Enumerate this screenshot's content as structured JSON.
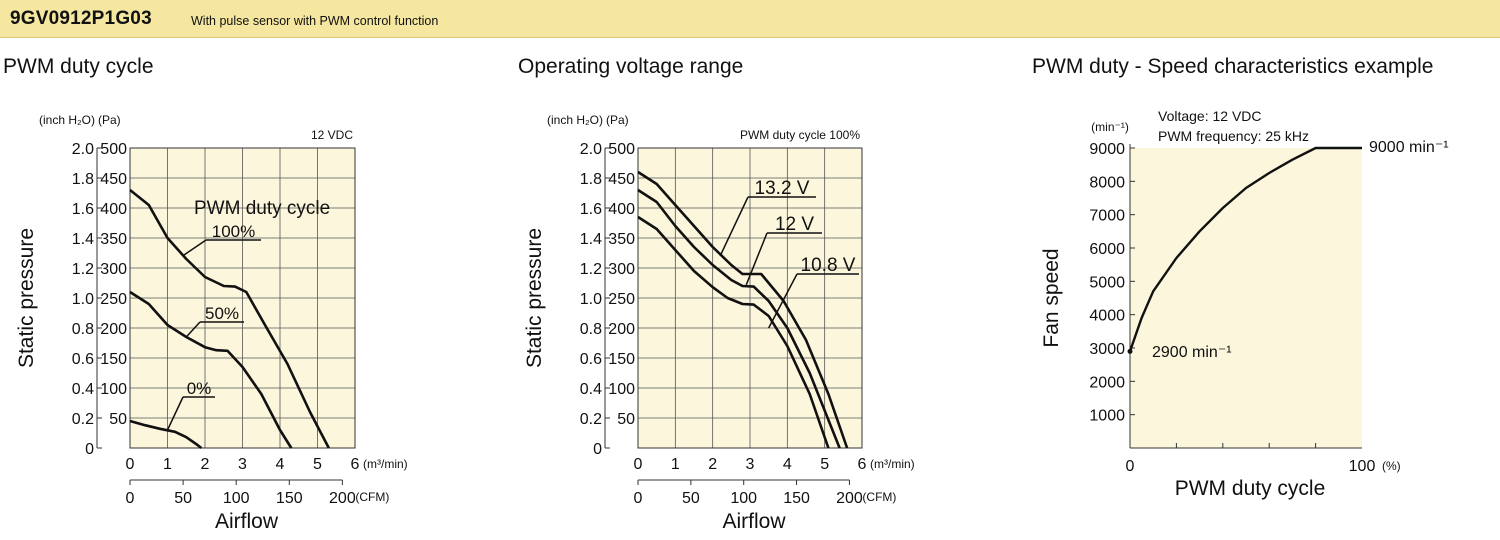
{
  "header": {
    "model": "9GV0912P1G03",
    "description": "With pulse sensor with PWM control function"
  },
  "colors": {
    "banner": "#f5e7a0",
    "plot_bg": "#fbf6dc",
    "curve": "#111111"
  },
  "chart_data": [
    {
      "type": "line",
      "title": "PWM duty cycle",
      "condition": "12 VDC",
      "xlabel": "Airflow",
      "ylabel": "Static pressure",
      "x_unit": "(m³/min)",
      "x2_unit": "(CFM)",
      "y_unit_left": "(inch H₂O)",
      "y_unit_right": "(Pa)",
      "xlim": [
        0,
        6
      ],
      "ylim": [
        0,
        500
      ],
      "grid": true,
      "x_ticks": [
        "0",
        "1",
        "2",
        "3",
        "4",
        "5",
        "6"
      ],
      "x2_ticks": [
        "0",
        "50",
        "100",
        "150",
        "200"
      ],
      "y_ticks_pa": [
        "50",
        "100",
        "150",
        "200",
        "250",
        "300",
        "350",
        "400",
        "450",
        "500"
      ],
      "y_ticks_inch": [
        "0",
        "0.2",
        "0.4",
        "0.6",
        "0.8",
        "1.0",
        "1.2",
        "1.4",
        "1.6",
        "1.8",
        "2.0"
      ],
      "legend_title": "PWM duty cycle",
      "series": [
        {
          "name": "100%",
          "points": [
            [
              0,
              430
            ],
            [
              0.5,
              405
            ],
            [
              1,
              350
            ],
            [
              1.5,
              315
            ],
            [
              2,
              285
            ],
            [
              2.5,
              270
            ],
            [
              2.8,
              269
            ],
            [
              3.1,
              260
            ],
            [
              3.6,
              205
            ],
            [
              4.2,
              140
            ],
            [
              4.8,
              60
            ],
            [
              5.3,
              0
            ]
          ]
        },
        {
          "name": "50%",
          "points": [
            [
              0,
              260
            ],
            [
              0.5,
              240
            ],
            [
              1,
              205
            ],
            [
              1.5,
              185
            ],
            [
              2,
              168
            ],
            [
              2.3,
              163
            ],
            [
              2.6,
              162
            ],
            [
              3,
              135
            ],
            [
              3.5,
              90
            ],
            [
              4,
              30
            ],
            [
              4.3,
              0
            ]
          ]
        },
        {
          "name": "0%",
          "points": [
            [
              0,
              45
            ],
            [
              0.4,
              38
            ],
            [
              0.8,
              32
            ],
            [
              1.2,
              27
            ],
            [
              1.5,
              18
            ],
            [
              1.8,
              5
            ],
            [
              1.9,
              0
            ]
          ]
        }
      ]
    },
    {
      "type": "line",
      "title": "Operating voltage range",
      "condition": "PWM duty cycle 100%",
      "xlabel": "Airflow",
      "ylabel": "Static pressure",
      "x_unit": "(m³/min)",
      "x2_unit": "(CFM)",
      "y_unit_left": "(inch H₂O)",
      "y_unit_right": "(Pa)",
      "xlim": [
        0,
        6
      ],
      "ylim": [
        0,
        500
      ],
      "grid": true,
      "x_ticks": [
        "0",
        "1",
        "2",
        "3",
        "4",
        "5",
        "6"
      ],
      "x2_ticks": [
        "0",
        "50",
        "100",
        "150",
        "200"
      ],
      "y_ticks_pa": [
        "50",
        "100",
        "150",
        "200",
        "250",
        "300",
        "350",
        "400",
        "450",
        "500"
      ],
      "y_ticks_inch": [
        "0",
        "0.2",
        "0.4",
        "0.6",
        "0.8",
        "1.0",
        "1.2",
        "1.4",
        "1.6",
        "1.8",
        "2.0"
      ],
      "series": [
        {
          "name": "13.2 V",
          "points": [
            [
              0,
              460
            ],
            [
              0.5,
              440
            ],
            [
              1,
              405
            ],
            [
              1.5,
              370
            ],
            [
              2,
              335
            ],
            [
              2.5,
              305
            ],
            [
              2.8,
              290
            ],
            [
              3.3,
              290
            ],
            [
              3.9,
              245
            ],
            [
              4.5,
              180
            ],
            [
              5.1,
              90
            ],
            [
              5.6,
              0
            ]
          ]
        },
        {
          "name": "12 V",
          "points": [
            [
              0,
              430
            ],
            [
              0.5,
              410
            ],
            [
              1,
              370
            ],
            [
              1.5,
              335
            ],
            [
              2,
              305
            ],
            [
              2.5,
              280
            ],
            [
              2.8,
              270
            ],
            [
              3.1,
              269
            ],
            [
              3.5,
              245
            ],
            [
              4,
              200
            ],
            [
              4.6,
              125
            ],
            [
              5.4,
              0
            ]
          ]
        },
        {
          "name": "10.8 V",
          "points": [
            [
              0,
              385
            ],
            [
              0.5,
              365
            ],
            [
              1,
              330
            ],
            [
              1.5,
              295
            ],
            [
              2,
              268
            ],
            [
              2.4,
              250
            ],
            [
              2.8,
              240
            ],
            [
              3.1,
              239
            ],
            [
              3.5,
              220
            ],
            [
              4,
              170
            ],
            [
              4.6,
              90
            ],
            [
              5.1,
              0
            ]
          ]
        }
      ]
    },
    {
      "type": "line",
      "title": "PWM duty - Speed characteristics example",
      "notes": [
        "Voltage: 12 VDC",
        "PWM frequency: 25 kHz"
      ],
      "xlabel": "PWM duty cycle",
      "ylabel": "Fan speed",
      "x_unit": "(%)",
      "y_unit": "(min⁻¹)",
      "xlim": [
        0,
        100
      ],
      "ylim": [
        0,
        9000
      ],
      "grid": false,
      "x_ticks": [
        "0",
        "100"
      ],
      "y_ticks": [
        "1000",
        "2000",
        "3000",
        "4000",
        "5000",
        "6000",
        "7000",
        "8000",
        "9000"
      ],
      "annotations": [
        "2900 min⁻¹",
        "9000 min⁻¹"
      ],
      "series": [
        {
          "points": [
            [
              0,
              2900
            ],
            [
              5,
              3900
            ],
            [
              10,
              4700
            ],
            [
              20,
              5700
            ],
            [
              30,
              6500
            ],
            [
              40,
              7200
            ],
            [
              50,
              7800
            ],
            [
              60,
              8250
            ],
            [
              70,
              8650
            ],
            [
              80,
              9000
            ],
            [
              100,
              9000
            ]
          ]
        }
      ]
    }
  ]
}
